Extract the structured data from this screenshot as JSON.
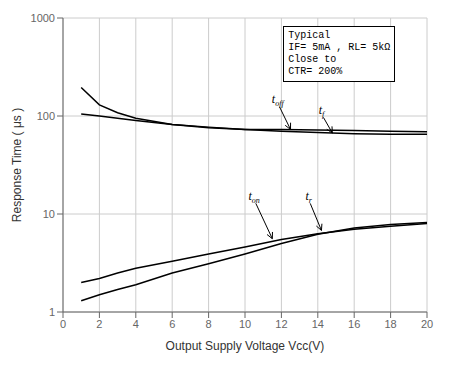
{
  "chart_data": {
    "type": "line",
    "xlabel": "Output Supply Voltage Vcc(V)",
    "ylabel": "Response Time ( μs )",
    "x": [
      1,
      2,
      3,
      4,
      6,
      8,
      10,
      12,
      14,
      16,
      18,
      20
    ],
    "series": [
      {
        "color": "#000000",
        "values": [
          195,
          130,
          108,
          95,
          82,
          76,
          73,
          73,
          72,
          71,
          70,
          69
        ]
      },
      {
        "color": "#000000",
        "values": [
          105,
          100,
          95,
          90,
          82,
          77,
          73,
          70,
          68,
          66,
          65,
          65
        ]
      },
      {
        "color": "#000000",
        "values": [
          2.0,
          2.2,
          2.5,
          2.8,
          3.3,
          3.9,
          4.6,
          5.5,
          6.3,
          7.0,
          7.5,
          8.0
        ]
      },
      {
        "color": "#000000",
        "values": [
          1.3,
          1.5,
          1.7,
          1.9,
          2.5,
          3.1,
          3.9,
          5.0,
          6.2,
          7.2,
          7.8,
          8.2
        ]
      }
    ],
    "xlim": [
      0,
      20
    ],
    "ylim": [
      1,
      1000
    ],
    "xticks": [
      0,
      2,
      4,
      6,
      8,
      10,
      12,
      14,
      16,
      18,
      20
    ],
    "yticks": [
      1,
      10,
      100,
      1000
    ],
    "log": "y",
    "grid": true,
    "annotations": [
      {
        "text": "t",
        "subscript": "off",
        "x": 11.8,
        "y": 135,
        "arrow_x": 12.5,
        "arrow_y": 73
      },
      {
        "text": "t",
        "subscript": "f",
        "x": 14.2,
        "y": 105,
        "arrow_x": 14.8,
        "arrow_y": 67
      },
      {
        "text": "t",
        "subscript": "on",
        "x": 10.5,
        "y": 14,
        "arrow_x": 11.5,
        "arrow_y": 5.6
      },
      {
        "text": "t",
        "subscript": "r",
        "x": 13.5,
        "y": 14,
        "arrow_x": 14.2,
        "arrow_y": 6.8
      }
    ],
    "note": "Typical\nIF= 5mA , RL= 5kΩ\nClose to\nCTR= 200%"
  }
}
